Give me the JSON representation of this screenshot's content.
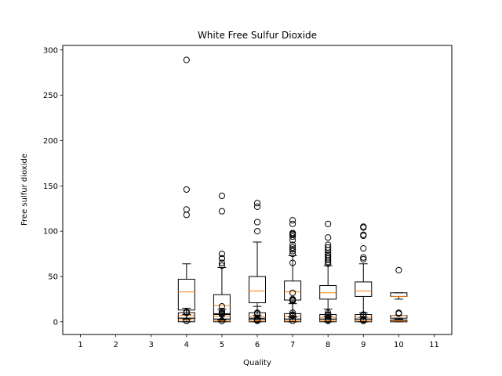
{
  "chart_data": {
    "type": "box",
    "title": "White Free Sulfur Dioxide",
    "xlabel": "Quality",
    "ylabel": "Free sulfur dioxide",
    "xlim": [
      0.5,
      11.5
    ],
    "ylim": [
      -14,
      305
    ],
    "x_ticks": [
      1,
      2,
      3,
      4,
      5,
      6,
      7,
      8,
      9,
      10,
      11
    ],
    "y_ticks": [
      0,
      50,
      100,
      150,
      200,
      250,
      300
    ],
    "grid": false,
    "colors": {
      "median": "#ff7f0e",
      "box": "#000000",
      "flier": "#000000"
    },
    "series": [
      {
        "name": "",
        "boxes": [
          {
            "x": 4,
            "q1": 13,
            "median": 33,
            "q3": 47,
            "whisker_low": 3,
            "whisker_high": 64,
            "fliers": [
              289,
              146,
              124,
              118
            ]
          },
          {
            "x": 5,
            "q1": 8,
            "median": 18,
            "q3": 30,
            "whisker_low": 2,
            "whisker_high": 60,
            "fliers": [
              139,
              122,
              75,
              70,
              70,
              65,
              62
            ]
          },
          {
            "x": 6,
            "q1": 21,
            "median": 34,
            "q3": 50,
            "whisker_low": 3,
            "whisker_high": 88,
            "fliers": [
              131,
              127,
              110,
              100
            ]
          },
          {
            "x": 7,
            "q1": 24,
            "median": 33,
            "q3": 45,
            "whisker_low": 5,
            "whisker_high": 73,
            "fliers": [
              112,
              108,
              98,
              97,
              96,
              94,
              90,
              85,
              82,
              80,
              78,
              75,
              65
            ]
          },
          {
            "x": 8,
            "q1": 25,
            "median": 32,
            "q3": 40,
            "whisker_low": 3,
            "whisker_high": 62,
            "fliers": [
              108,
              93,
              85,
              82,
              79,
              76,
              74,
              72,
              70,
              68,
              66,
              64
            ]
          },
          {
            "x": 9,
            "q1": 28,
            "median": 34,
            "q3": 44,
            "whisker_low": 5,
            "whisker_high": 64,
            "fliers": [
              105,
              104,
              96,
              95,
              81,
              71,
              69
            ]
          },
          {
            "x": 10,
            "q1": 28,
            "median": 28,
            "q3": 32,
            "whisker_low": 25,
            "whisker_high": 32,
            "fliers": [
              57
            ]
          }
        ]
      },
      {
        "name": "",
        "boxes": [
          {
            "x": 4,
            "q1": 4,
            "median": 7,
            "q3": 10,
            "whisker_low": 0,
            "whisker_high": 15,
            "fliers": [
              11,
              10,
              1
            ]
          },
          {
            "x": 5,
            "q1": 3,
            "median": 6,
            "q3": 9,
            "whisker_low": 0,
            "whisker_high": 14,
            "fliers": [
              17,
              12,
              10,
              1
            ]
          },
          {
            "x": 6,
            "q1": 4,
            "median": 6,
            "q3": 10,
            "whisker_low": 0,
            "whisker_high": 17,
            "fliers": [
              10,
              4,
              3,
              2
            ]
          },
          {
            "x": 7,
            "q1": 3,
            "median": 6,
            "q3": 9,
            "whisker_low": 0,
            "whisker_high": 20,
            "fliers": [
              32,
              25,
              24,
              23,
              10,
              3
            ]
          },
          {
            "x": 8,
            "q1": 3,
            "median": 5,
            "q3": 8,
            "whisker_low": 0,
            "whisker_high": 14,
            "fliers": [
              10,
              8,
              4,
              2
            ]
          },
          {
            "x": 9,
            "q1": 3,
            "median": 5,
            "q3": 8,
            "whisker_low": 0,
            "whisker_high": 10,
            "fliers": [
              8,
              3,
              2
            ]
          },
          {
            "x": 10,
            "q1": 4,
            "median": 7,
            "q3": 7,
            "whisker_low": 3,
            "whisker_high": 7,
            "fliers": [
              10,
              9
            ]
          }
        ]
      },
      {
        "name": "",
        "boxes": [
          {
            "x": 4,
            "q1": 0,
            "median": 2,
            "q3": 4,
            "whisker_low": 0,
            "whisker_high": 8,
            "fliers": [
              10,
              1
            ]
          },
          {
            "x": 5,
            "q1": 0,
            "median": 1,
            "q3": 3,
            "whisker_low": 0,
            "whisker_high": 8,
            "fliers": [
              9,
              8,
              1
            ]
          },
          {
            "x": 6,
            "q1": 0,
            "median": 1,
            "q3": 3,
            "whisker_low": 0,
            "whisker_high": 7,
            "fliers": [
              9,
              1
            ]
          },
          {
            "x": 7,
            "q1": 0,
            "median": 1,
            "q3": 3,
            "whisker_low": 0,
            "whisker_high": 6,
            "fliers": [
              8,
              7,
              1
            ]
          },
          {
            "x": 8,
            "q1": 0,
            "median": 1,
            "q3": 3,
            "whisker_low": 0,
            "whisker_high": 6,
            "fliers": [
              7,
              1
            ]
          },
          {
            "x": 9,
            "q1": 0,
            "median": 1,
            "q3": 3,
            "whisker_low": 0,
            "whisker_high": 5,
            "fliers": [
              7,
              2,
              1
            ]
          },
          {
            "x": 10,
            "q1": 0,
            "median": 1,
            "q3": 2,
            "whisker_low": 0,
            "whisker_high": 4,
            "fliers": []
          }
        ]
      }
    ]
  }
}
